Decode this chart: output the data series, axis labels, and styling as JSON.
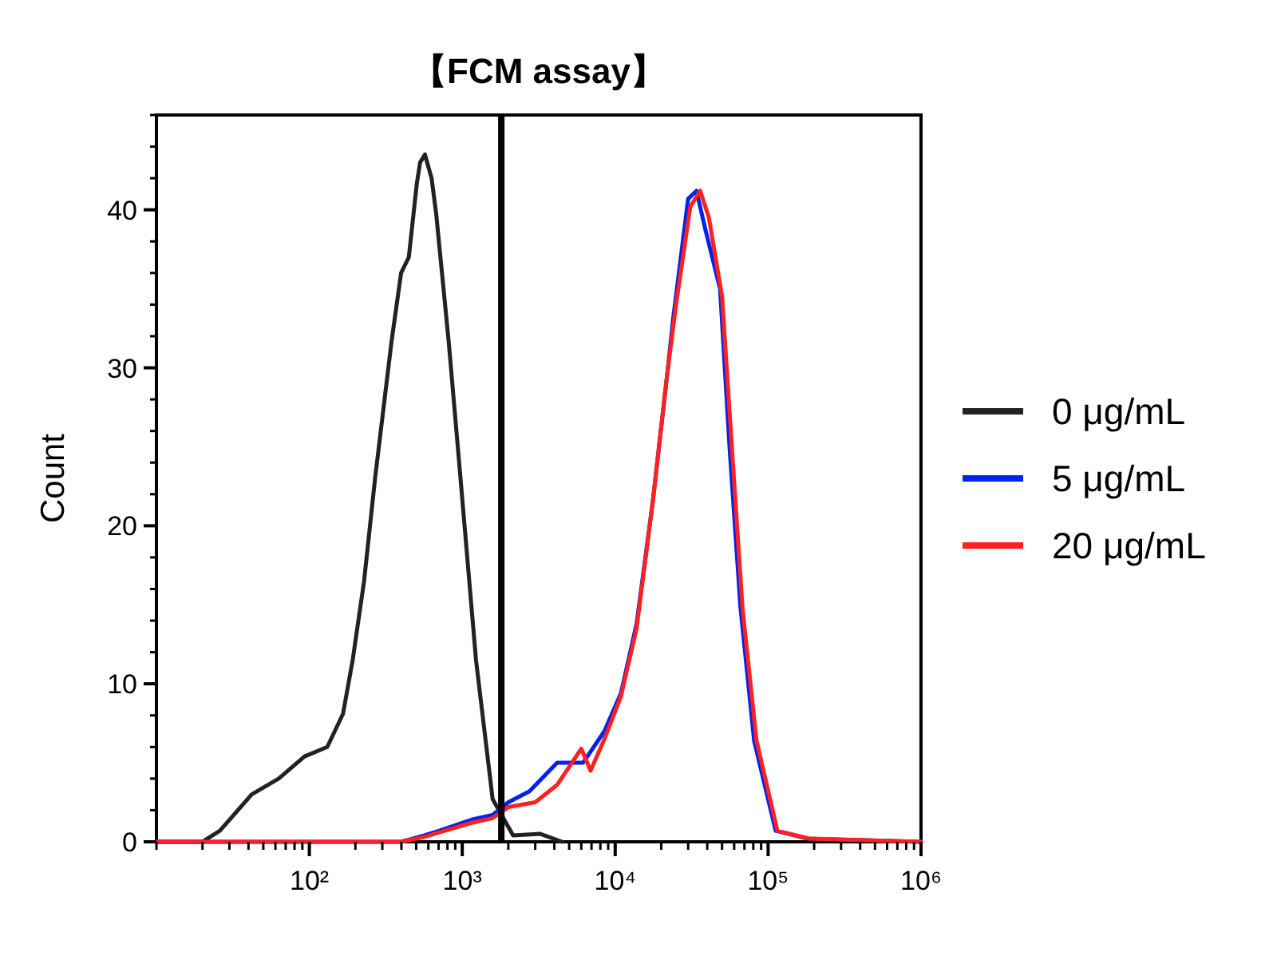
{
  "chart_data": {
    "type": "line",
    "title": "【FCM assay】",
    "ylabel": "Count",
    "log": "x",
    "xlim": [
      10,
      1000000
    ],
    "xticks": [
      {
        "value": 100,
        "label": "10²"
      },
      {
        "value": 1000,
        "label": "10³"
      },
      {
        "value": 10000,
        "label": "10⁴"
      },
      {
        "value": 100000,
        "label": "10⁵"
      },
      {
        "value": 1000000,
        "label": "10⁶"
      }
    ],
    "ylim": [
      0,
      46
    ],
    "yticks": [
      0,
      10,
      20,
      30,
      40
    ],
    "grid": false,
    "legend": "right",
    "marker": "none",
    "line_style": "solid",
    "ref_lines": [
      {
        "axis": "x",
        "value": 1800,
        "color": "#000000"
      }
    ],
    "series": [
      {
        "name": "0 μg/mL",
        "color": "#222222",
        "x": [
          10,
          20,
          26,
          42,
          63,
          93,
          131,
          166,
          192,
          228,
          269,
          344,
          398,
          447,
          505,
          530,
          570,
          630,
          676,
          816,
          970,
          1230,
          1580,
          2150,
          3240,
          4500
        ],
        "values": [
          0,
          0,
          0.7,
          3,
          4,
          5.4,
          6,
          8.1,
          11.5,
          16.5,
          23,
          31.6,
          36,
          37,
          41.7,
          43,
          43.5,
          42,
          39.7,
          31.6,
          23.2,
          11.5,
          2.7,
          0.4,
          0.5,
          0
        ]
      },
      {
        "name": "5 μg/mL",
        "color": "#0022ee",
        "x": [
          10,
          100,
          398,
          560,
          708,
          1150,
          1580,
          2000,
          2750,
          4170,
          6160,
          8500,
          10900,
          13800,
          17600,
          21500,
          24000,
          30000,
          34000,
          39000,
          48500,
          56000,
          66000,
          81000,
          112000,
          182000,
          1000000
        ],
        "values": [
          0,
          0,
          0,
          0.4,
          0.7,
          1.4,
          1.7,
          2.5,
          3.2,
          5,
          5,
          7,
          9.4,
          13.8,
          21.5,
          28.9,
          33.2,
          40.7,
          41.2,
          38.7,
          35,
          24.9,
          14.8,
          6.4,
          0.7,
          0.2,
          0
        ]
      },
      {
        "name": "20 μg/mL",
        "color": "#ff2020",
        "x": [
          10,
          100,
          398,
          560,
          708,
          1150,
          1580,
          2000,
          3000,
          4170,
          6000,
          6900,
          8500,
          10900,
          13800,
          17600,
          21500,
          25000,
          31000,
          36000,
          41000,
          50000,
          58000,
          68000,
          84000,
          115000,
          185000,
          1000000
        ],
        "values": [
          0,
          0,
          0,
          0.3,
          0.6,
          1.2,
          1.5,
          2.2,
          2.5,
          3.6,
          5.9,
          4.5,
          6.5,
          9.2,
          13.5,
          21.5,
          29,
          34,
          40.2,
          41.2,
          39.5,
          34.5,
          24.9,
          14.8,
          6.4,
          0.7,
          0.2,
          0
        ]
      }
    ]
  }
}
